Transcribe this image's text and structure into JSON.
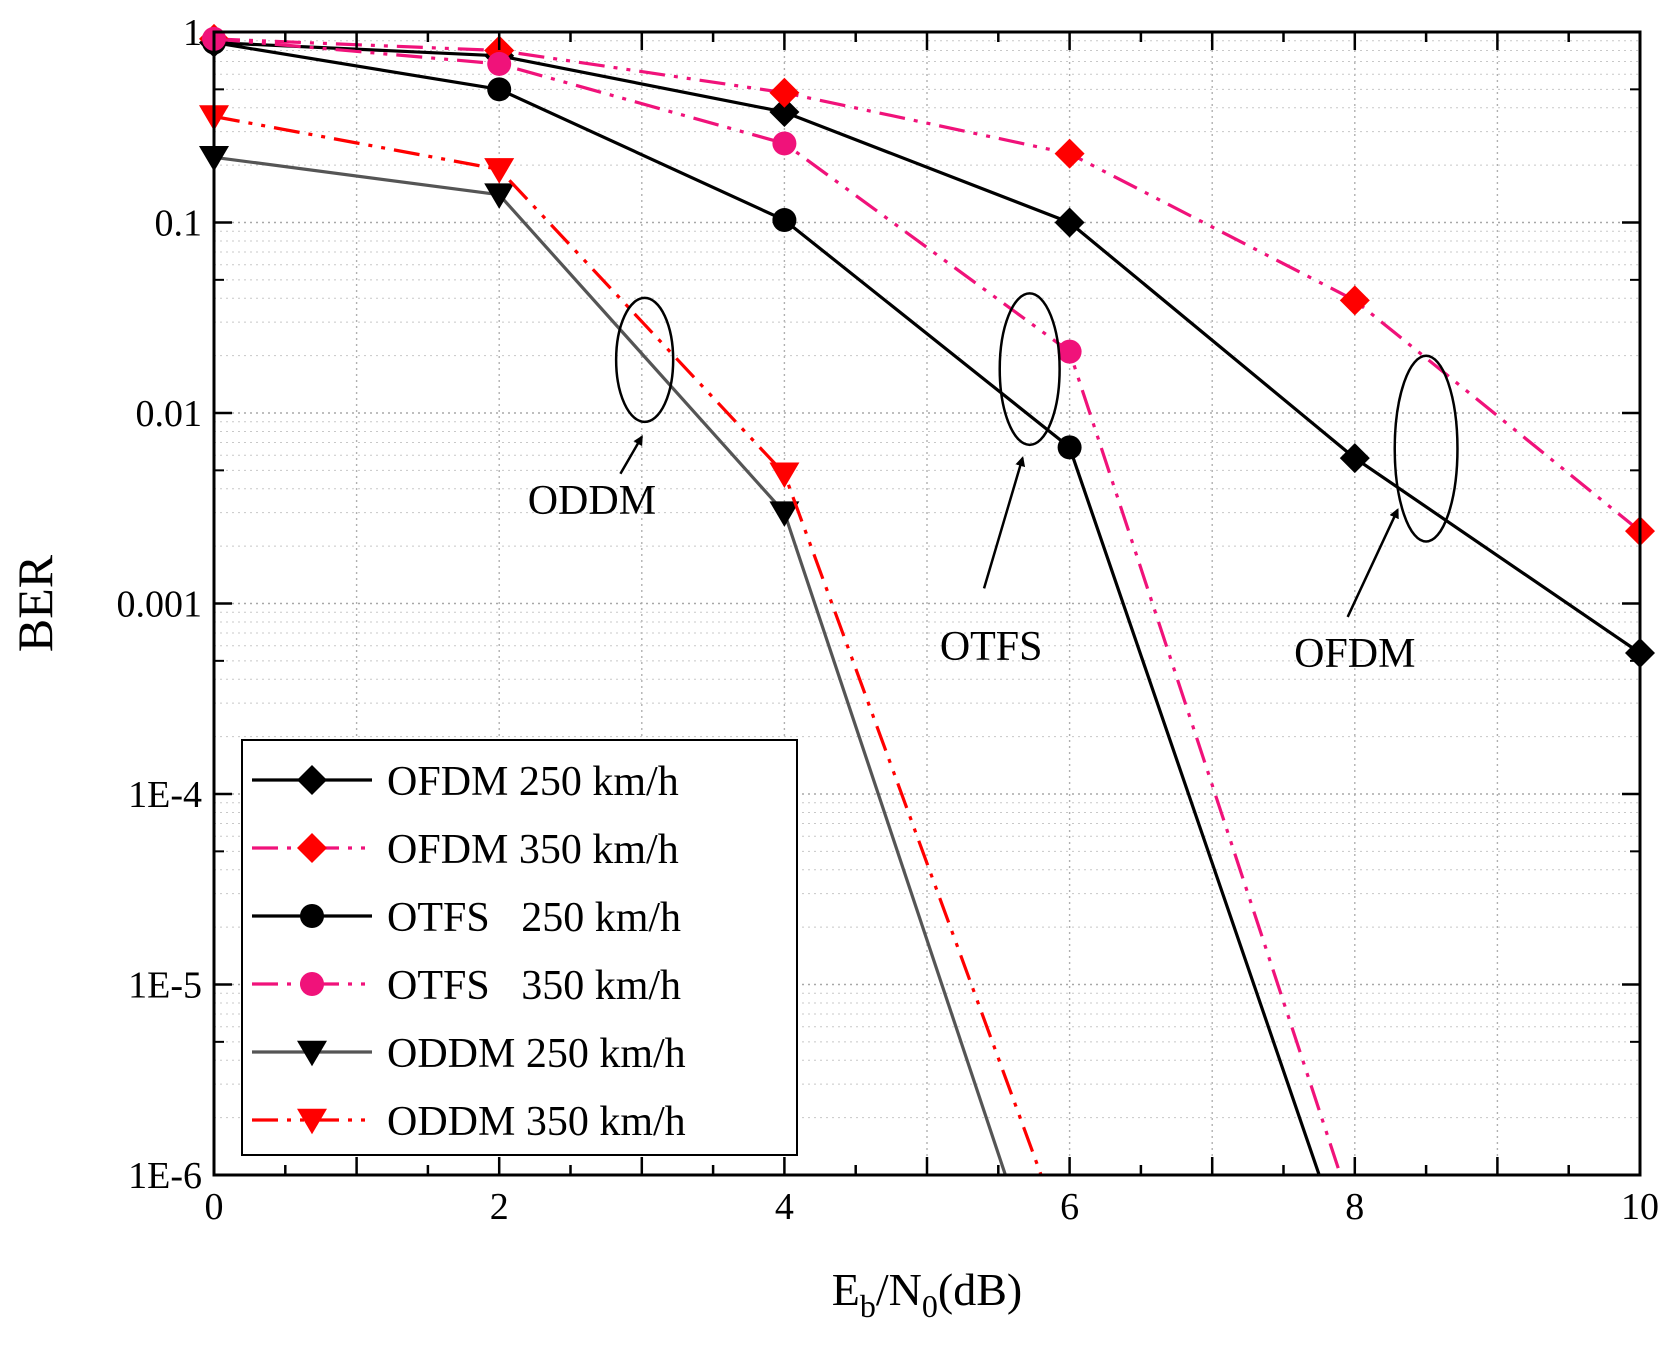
{
  "chart_data": {
    "type": "line",
    "xlabel": {
      "main": "E",
      "sub1": "b",
      "mid": "/N",
      "sub2": "0",
      "tail": "(dB)"
    },
    "ylabel": "BER",
    "xlim": [
      0,
      10
    ],
    "ylim": [
      1e-06,
      1
    ],
    "yscale": "log",
    "grid": true,
    "legend_position": "bottom-left",
    "x_ticks": [
      {
        "v": 0,
        "label": "0"
      },
      {
        "v": 2,
        "label": "2"
      },
      {
        "v": 4,
        "label": "4"
      },
      {
        "v": 6,
        "label": "6"
      },
      {
        "v": 8,
        "label": "8"
      },
      {
        "v": 10,
        "label": "10"
      }
    ],
    "y_ticks": [
      {
        "v": 1,
        "label": "1"
      },
      {
        "v": 0.1,
        "label": "0.1"
      },
      {
        "v": 0.01,
        "label": "0.01"
      },
      {
        "v": 0.001,
        "label": "0.001"
      },
      {
        "v": 0.0001,
        "label": "1E-4"
      },
      {
        "v": 1e-05,
        "label": "1E-5"
      },
      {
        "v": 1e-06,
        "label": "1E-6"
      }
    ],
    "series": [
      {
        "name": "OFDM 250 km/h",
        "color": "#000000",
        "dash": "solid",
        "marker": "diamond",
        "x": [
          0,
          2,
          4,
          6,
          8,
          10
        ],
        "y": [
          0.88,
          0.75,
          0.38,
          0.1,
          0.0058,
          0.00055
        ]
      },
      {
        "name": "OFDM 350 km/h",
        "color": "#f0127a",
        "marker_color": "#ff0000",
        "dash": "dash-dot-dot",
        "marker": "diamond",
        "x": [
          0,
          2,
          4,
          6,
          8,
          10
        ],
        "y": [
          0.92,
          0.8,
          0.48,
          0.23,
          0.039,
          0.0024
        ]
      },
      {
        "name": "OTFS   250 km/h",
        "color": "#000000",
        "dash": "solid",
        "marker": "circle",
        "x": [
          0,
          2,
          4,
          6,
          7.75
        ],
        "y": [
          0.88,
          0.5,
          0.103,
          0.0066,
          1e-06
        ]
      },
      {
        "name": "OTFS   350 km/h",
        "color": "#f0127a",
        "marker_color": "#f0127a",
        "dash": "dash-dot-dot",
        "marker": "circle",
        "x": [
          0,
          2,
          4,
          6,
          7.9
        ],
        "y": [
          0.92,
          0.68,
          0.26,
          0.021,
          1e-06
        ]
      },
      {
        "name": "ODDM 250 km/h",
        "color": "#555555",
        "marker_color": "#000000",
        "dash": "solid",
        "marker": "triangle-down",
        "x": [
          0,
          2,
          4,
          5.55
        ],
        "y": [
          0.22,
          0.14,
          0.003,
          1e-06
        ]
      },
      {
        "name": "ODDM 350 km/h",
        "color": "#ff0000",
        "marker_color": "#ff0000",
        "dash": "dash-dot-dot",
        "marker": "triangle-down",
        "x": [
          0,
          2,
          4,
          5.8
        ],
        "y": [
          0.36,
          0.19,
          0.0048,
          1e-06
        ]
      }
    ],
    "marker_points": {
      "OFDM 250 km/h": 6,
      "OFDM 350 km/h": 6,
      "OTFS   250 km/h": 4,
      "OTFS   350 km/h": 4,
      "ODDM 250 km/h": 3,
      "ODDM 350 km/h": 3
    },
    "annotations": [
      {
        "text": "ODDM",
        "ellipse_center": [
          3.02,
          0.019
        ],
        "ellipse_rx": 0.2,
        "ellipse_ry_decades": [
          1.3,
          2.0
        ],
        "arrow_from": [
          2.85,
          0.0048
        ],
        "arrow_to": [
          3.0,
          0.0075
        ],
        "label_at": [
          2.65,
          0.0035
        ]
      },
      {
        "text": "OTFS",
        "ellipse_center": [
          5.72,
          0.017
        ],
        "ellipse_rx": 0.21,
        "ellipse_ry_decades": [
          1.5,
          2.6
        ],
        "arrow_from": [
          5.4,
          0.0012
        ],
        "arrow_to": [
          5.67,
          0.0058
        ],
        "label_at": [
          5.45,
          0.0006
        ]
      },
      {
        "text": "OFDM",
        "ellipse_center": [
          8.5,
          0.0065
        ],
        "ellipse_rx": 0.22,
        "ellipse_ry_decades": [
          1.6,
          3.2
        ],
        "arrow_from": [
          7.95,
          0.00085
        ],
        "arrow_to": [
          8.3,
          0.0031
        ],
        "label_at": [
          8.0,
          0.00055
        ]
      }
    ]
  }
}
